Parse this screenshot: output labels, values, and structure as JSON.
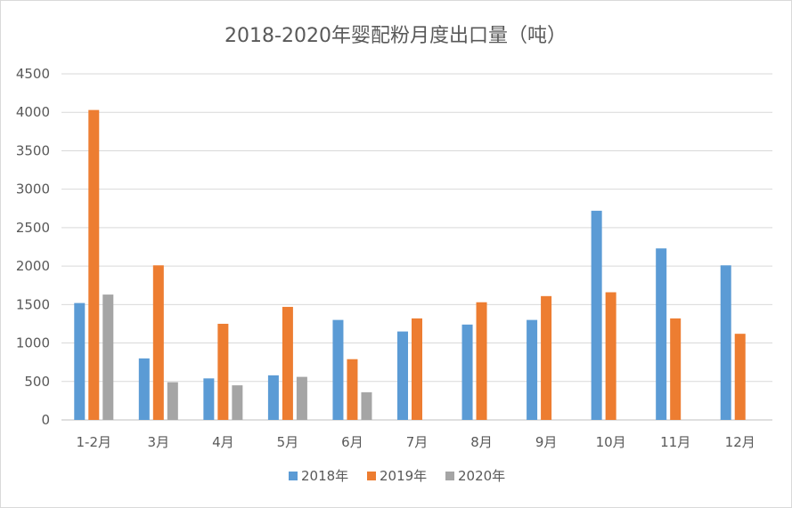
{
  "chart_data": {
    "type": "bar",
    "title": "2018-2020年婴配粉月度出口量（吨）",
    "xlabel": "",
    "ylabel": "",
    "categories": [
      "1-2月",
      "3月",
      "4月",
      "5月",
      "6月",
      "7月",
      "8月",
      "9月",
      "10月",
      "11月",
      "12月"
    ],
    "ylim": [
      0,
      4500
    ],
    "yticks": [
      0,
      500,
      1000,
      1500,
      2000,
      2500,
      3000,
      3500,
      4000,
      4500
    ],
    "grid": true,
    "legend_position": "bottom",
    "series": [
      {
        "name": "2018年",
        "color": "#5B9BD5",
        "values": [
          1520,
          800,
          540,
          580,
          1300,
          1150,
          1240,
          1300,
          2720,
          2230,
          2010
        ]
      },
      {
        "name": "2019年",
        "color": "#ED7D31",
        "values": [
          4030,
          2010,
          1250,
          1470,
          790,
          1320,
          1530,
          1610,
          1660,
          1320,
          1120
        ]
      },
      {
        "name": "2020年",
        "color": "#A5A5A5",
        "values": [
          1630,
          490,
          450,
          560,
          360,
          null,
          null,
          null,
          null,
          null,
          null
        ]
      }
    ]
  }
}
